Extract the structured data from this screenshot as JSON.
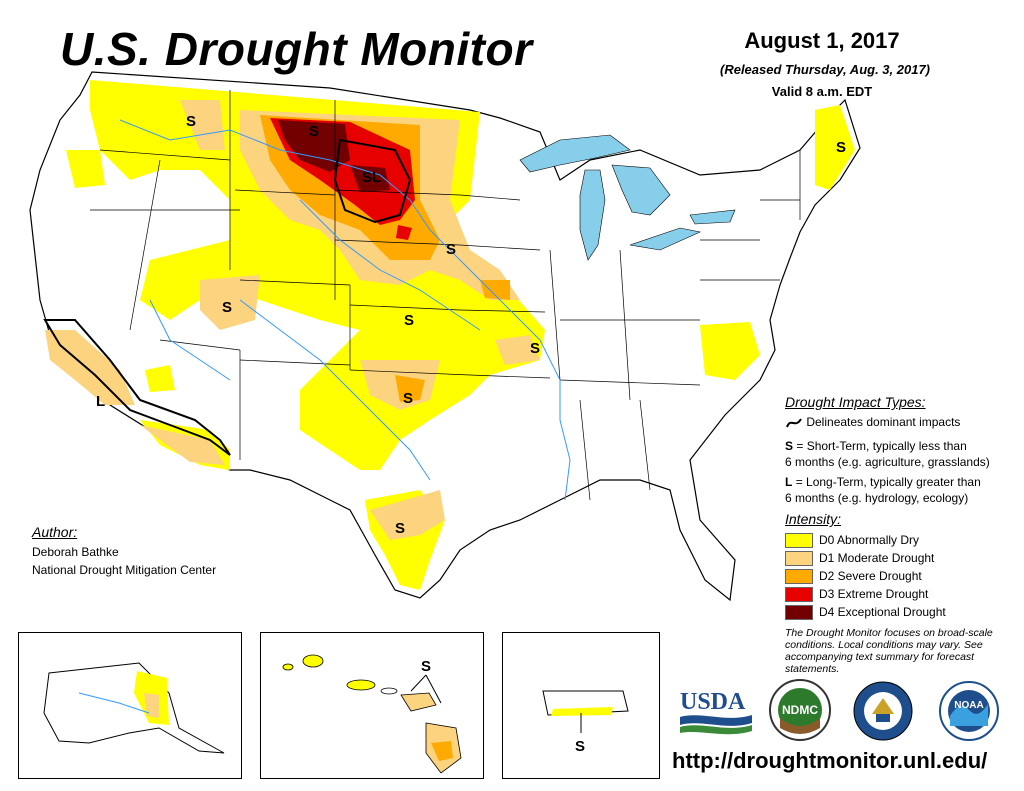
{
  "header": {
    "title": "U.S. Drought Monitor",
    "date": "August 1, 2017",
    "released": "(Released Thursday, Aug. 3, 2017)",
    "valid": "Valid 8 a.m. EDT"
  },
  "impact_legend": {
    "title": "Drought Impact Types:",
    "line_label": "Delineates dominant impacts",
    "s_key": "S",
    "s_text": "= Short-Term, typically less than",
    "s_text2": "6 months (e.g. agriculture, grasslands)",
    "l_key": "L",
    "l_text": "= Long-Term, typically greater than",
    "l_text2": "6 months (e.g. hydrology, ecology)"
  },
  "intensity_legend": {
    "title": "Intensity:",
    "items": [
      {
        "label": "D0 Abnormally Dry",
        "color": "#ffff00"
      },
      {
        "label": "D1 Moderate Drought",
        "color": "#fcd37f"
      },
      {
        "label": "D2 Severe Drought",
        "color": "#ffaa00"
      },
      {
        "label": "D3 Extreme Drought",
        "color": "#e60000"
      },
      {
        "label": "D4 Exceptional Drought",
        "color": "#730000"
      }
    ]
  },
  "note": "The Drought Monitor focuses on broad-scale conditions. Local conditions may vary. See accompanying text summary for forecast statements.",
  "author": {
    "heading": "Author:",
    "name": "Deborah Bathke",
    "org": "National Drought Mitigation Center"
  },
  "map_labels": {
    "short_term": "S",
    "long_term": "L",
    "short_long": "SL"
  },
  "logos": {
    "usda": "USDA",
    "ndmc": "NDMC",
    "noaa": "NOAA"
  },
  "colors": {
    "water": "#87ceeb",
    "boundary": "#000000",
    "river": "#3399ff"
  },
  "url": "http://droughtmonitor.unl.edu/"
}
